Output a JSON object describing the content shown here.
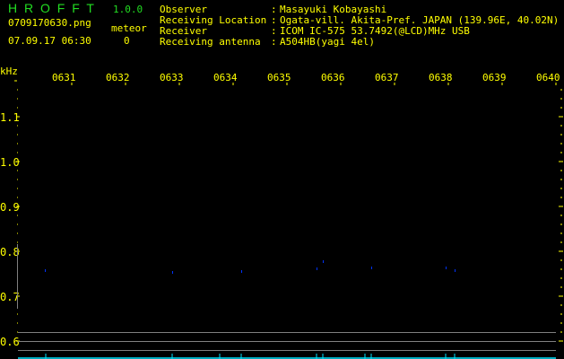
{
  "app": {
    "name": "H R O F F T",
    "version": "1.0.0"
  },
  "file": {
    "name": "0709170630.png",
    "datetime": "07.09.17 06:30"
  },
  "meteor": {
    "label": "meteor",
    "count": "0"
  },
  "info": [
    {
      "label": "Observer",
      "value": "Masayuki Kobayashi"
    },
    {
      "label": "Receiving Location",
      "value": "Ogata-vill. Akita-Pref. JAPAN (139.96E, 40.02N)"
    },
    {
      "label": "Receiver",
      "value": "ICOM IC-575 53.7492(@LCD)MHz USB"
    },
    {
      "label": "Receiving antenna",
      "value": "A504HB(yagi 4el)"
    }
  ],
  "axis": {
    "y_unit": "kHz",
    "y_ticks": [
      "1.1",
      "1.0",
      "0.9",
      "0.8",
      "0.7",
      "0.6"
    ],
    "x_ticks": [
      "0631",
      "0632",
      "0633",
      "0634",
      "0635",
      "0636",
      "0637",
      "0638",
      "0639",
      "0640"
    ]
  },
  "colors": {
    "text": "#ffff00",
    "title": "#22dd22",
    "signal": "#0033ff",
    "baseline": "#00e5ff",
    "grid": "#808080"
  }
}
